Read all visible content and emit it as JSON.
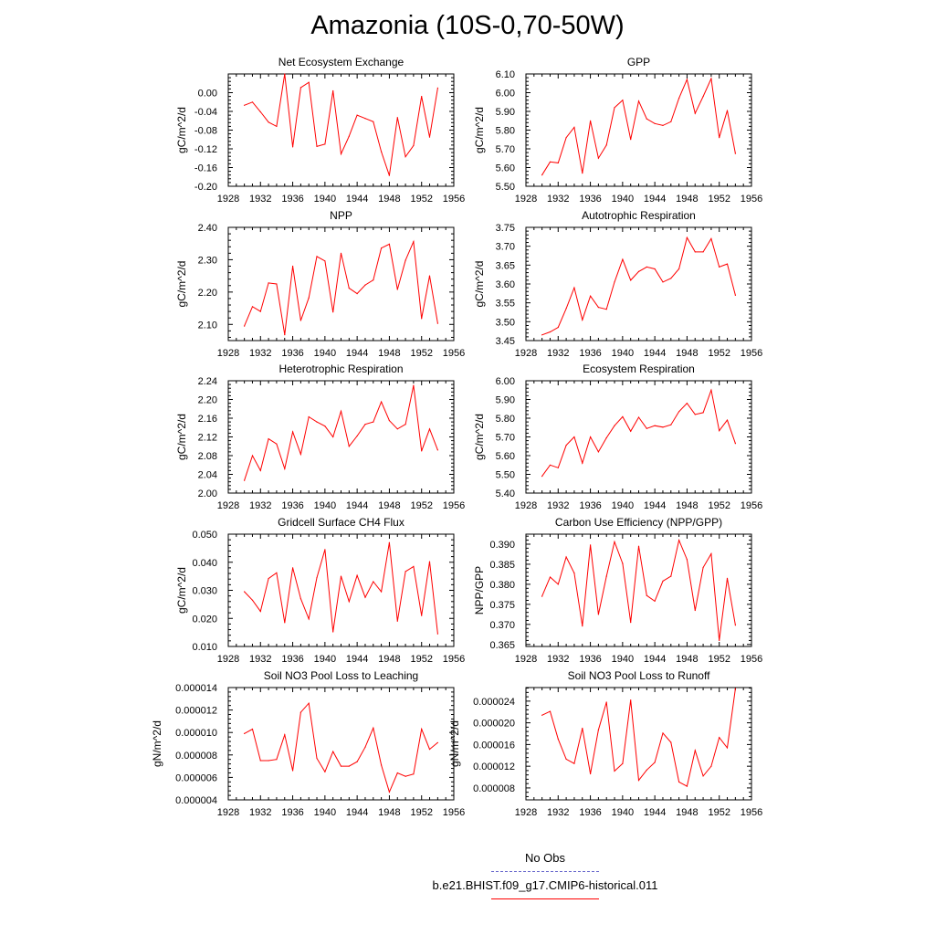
{
  "title": "Amazonia (10S-0,70-50W)",
  "colors": {
    "series": "#ff0000",
    "obs": "#6666cc",
    "axis": "#000000"
  },
  "legend": {
    "obs_label": "No Obs",
    "model_label": "b.e21.BHIST.f09_g17.CMIP6-historical.011"
  },
  "chart_data": [
    {
      "type": "line",
      "title": "Net Ecosystem Exchange",
      "ylabel": "gC/m^2/d",
      "xlim": [
        1928,
        1956
      ],
      "xticks": [
        1928,
        1932,
        1936,
        1940,
        1944,
        1948,
        1952,
        1956
      ],
      "ylim": [
        -0.2,
        0.04
      ],
      "yticks": [
        "-0.20",
        "-0.16",
        "-0.12",
        "-0.08",
        "-0.04",
        "0.00"
      ],
      "x": [
        1930,
        1931,
        1932,
        1933,
        1934,
        1935,
        1936,
        1937,
        1938,
        1939,
        1940,
        1941,
        1942,
        1943,
        1944,
        1945,
        1946,
        1947,
        1948,
        1949,
        1950,
        1951,
        1952,
        1953,
        1954
      ],
      "y": [
        -0.027,
        -0.02,
        -0.041,
        -0.063,
        -0.072,
        0.04,
        -0.116,
        0.011,
        0.022,
        -0.115,
        -0.11,
        0.004,
        -0.131,
        -0.093,
        -0.048,
        -0.055,
        -0.062,
        -0.126,
        -0.177,
        -0.053,
        -0.137,
        -0.113,
        -0.008,
        -0.095,
        0.01
      ]
    },
    {
      "type": "line",
      "title": "GPP",
      "ylabel": "gC/m^2/d",
      "xlim": [
        1928,
        1956
      ],
      "xticks": [
        1928,
        1932,
        1936,
        1940,
        1944,
        1948,
        1952,
        1956
      ],
      "ylim": [
        5.5,
        6.1
      ],
      "yticks": [
        "5.50",
        "5.60",
        "5.70",
        "5.80",
        "5.90",
        "6.00",
        "6.10"
      ],
      "x": [
        1930,
        1931,
        1932,
        1933,
        1934,
        1935,
        1936,
        1937,
        1938,
        1939,
        1940,
        1941,
        1942,
        1943,
        1944,
        1945,
        1946,
        1947,
        1948,
        1949,
        1950,
        1951,
        1952,
        1953,
        1954
      ],
      "y": [
        5.56,
        5.63,
        5.625,
        5.76,
        5.815,
        5.57,
        5.85,
        5.65,
        5.72,
        5.92,
        5.96,
        5.75,
        5.955,
        5.86,
        5.835,
        5.825,
        5.845,
        5.97,
        6.07,
        5.89,
        5.98,
        6.075,
        5.76,
        5.905,
        5.675
      ]
    },
    {
      "type": "line",
      "title": "NPP",
      "ylabel": "gC/m^2/d",
      "xlim": [
        1928,
        1956
      ],
      "xticks": [
        1928,
        1932,
        1936,
        1940,
        1944,
        1948,
        1952,
        1956
      ],
      "ylim": [
        2.05,
        2.4
      ],
      "yticks": [
        "2.10",
        "2.20",
        "2.30",
        "2.40"
      ],
      "x": [
        1930,
        1931,
        1932,
        1933,
        1934,
        1935,
        1936,
        1937,
        1938,
        1939,
        1940,
        1941,
        1942,
        1943,
        1944,
        1945,
        1946,
        1947,
        1948,
        1949,
        1950,
        1951,
        1952,
        1953,
        1954
      ],
      "y": [
        2.095,
        2.155,
        2.14,
        2.228,
        2.225,
        2.068,
        2.28,
        2.112,
        2.182,
        2.31,
        2.296,
        2.138,
        2.32,
        2.212,
        2.195,
        2.222,
        2.237,
        2.336,
        2.348,
        2.208,
        2.298,
        2.356,
        2.118,
        2.25,
        2.103
      ]
    },
    {
      "type": "line",
      "title": "Autotrophic Respiration",
      "ylabel": "gC/m^2/d",
      "xlim": [
        1928,
        1956
      ],
      "xticks": [
        1928,
        1932,
        1936,
        1940,
        1944,
        1948,
        1952,
        1956
      ],
      "ylim": [
        3.45,
        3.75
      ],
      "yticks": [
        "3.45",
        "3.50",
        "3.55",
        "3.60",
        "3.65",
        "3.70",
        "3.75"
      ],
      "x": [
        1930,
        1931,
        1932,
        1933,
        1934,
        1935,
        1936,
        1937,
        1938,
        1939,
        1940,
        1941,
        1942,
        1943,
        1944,
        1945,
        1946,
        1947,
        1948,
        1949,
        1950,
        1951,
        1952,
        1953,
        1954
      ],
      "y": [
        3.465,
        3.473,
        3.485,
        3.535,
        3.59,
        3.505,
        3.568,
        3.538,
        3.533,
        3.605,
        3.665,
        3.61,
        3.633,
        3.645,
        3.64,
        3.605,
        3.615,
        3.64,
        3.723,
        3.685,
        3.685,
        3.72,
        3.645,
        3.653,
        3.57
      ]
    },
    {
      "type": "line",
      "title": "Heterotrophic Respiration",
      "ylabel": "gC/m^2/d",
      "xlim": [
        1928,
        1956
      ],
      "xticks": [
        1928,
        1932,
        1936,
        1940,
        1944,
        1948,
        1952,
        1956
      ],
      "ylim": [
        2.0,
        2.24
      ],
      "yticks": [
        "2.00",
        "2.04",
        "2.08",
        "2.12",
        "2.16",
        "2.20",
        "2.24"
      ],
      "x": [
        1930,
        1931,
        1932,
        1933,
        1934,
        1935,
        1936,
        1937,
        1938,
        1939,
        1940,
        1941,
        1942,
        1943,
        1944,
        1945,
        1946,
        1947,
        1948,
        1949,
        1950,
        1951,
        1952,
        1953,
        1954
      ],
      "y": [
        2.027,
        2.08,
        2.048,
        2.116,
        2.105,
        2.052,
        2.131,
        2.083,
        2.163,
        2.152,
        2.143,
        2.12,
        2.175,
        2.1,
        2.122,
        2.147,
        2.152,
        2.195,
        2.155,
        2.137,
        2.147,
        2.23,
        2.09,
        2.137,
        2.092
      ]
    },
    {
      "type": "line",
      "title": "Ecosystem Respiration",
      "ylabel": "gC/m^2/d",
      "xlim": [
        1928,
        1956
      ],
      "xticks": [
        1928,
        1932,
        1936,
        1940,
        1944,
        1948,
        1952,
        1956
      ],
      "ylim": [
        5.4,
        6.0
      ],
      "yticks": [
        "5.40",
        "5.50",
        "5.60",
        "5.70",
        "5.80",
        "5.90",
        "6.00"
      ],
      "x": [
        1930,
        1931,
        1932,
        1933,
        1934,
        1935,
        1936,
        1937,
        1938,
        1939,
        1940,
        1941,
        1942,
        1943,
        1944,
        1945,
        1946,
        1947,
        1948,
        1949,
        1950,
        1951,
        1952,
        1953,
        1954
      ],
      "y": [
        5.49,
        5.55,
        5.535,
        5.655,
        5.7,
        5.56,
        5.7,
        5.62,
        5.695,
        5.76,
        5.808,
        5.73,
        5.805,
        5.745,
        5.76,
        5.752,
        5.765,
        5.835,
        5.88,
        5.82,
        5.83,
        5.95,
        5.733,
        5.79,
        5.665
      ]
    },
    {
      "type": "line",
      "title": "Gridcell Surface CH4 Flux",
      "ylabel": "gC/m^2/d",
      "xlim": [
        1928,
        1956
      ],
      "xticks": [
        1928,
        1932,
        1936,
        1940,
        1944,
        1948,
        1952,
        1956
      ],
      "ylim": [
        0.01,
        0.05
      ],
      "yticks": [
        "0.010",
        "0.020",
        "0.030",
        "0.040",
        "0.050"
      ],
      "x": [
        1930,
        1931,
        1932,
        1933,
        1934,
        1935,
        1936,
        1937,
        1938,
        1939,
        1940,
        1941,
        1942,
        1943,
        1944,
        1945,
        1946,
        1947,
        1948,
        1949,
        1950,
        1951,
        1952,
        1953,
        1954
      ],
      "y": [
        0.0295,
        0.0265,
        0.0225,
        0.0342,
        0.0362,
        0.0185,
        0.038,
        0.027,
        0.0198,
        0.0345,
        0.0445,
        0.0152,
        0.035,
        0.026,
        0.0353,
        0.0275,
        0.0331,
        0.0295,
        0.047,
        0.019,
        0.0367,
        0.0385,
        0.021,
        0.0402,
        0.0145
      ]
    },
    {
      "type": "line",
      "title": "Carbon Use Efficiency (NPP/GPP)",
      "ylabel": "NPP/GPP",
      "xlim": [
        1928,
        1956
      ],
      "xticks": [
        1928,
        1932,
        1936,
        1940,
        1944,
        1948,
        1952,
        1956
      ],
      "ylim": [
        0.3645,
        0.3925
      ],
      "yticks": [
        "0.365",
        "0.370",
        "0.375",
        "0.380",
        "0.385",
        "0.390"
      ],
      "x": [
        1930,
        1931,
        1932,
        1933,
        1934,
        1935,
        1936,
        1937,
        1938,
        1939,
        1940,
        1941,
        1942,
        1943,
        1944,
        1945,
        1946,
        1947,
        1948,
        1949,
        1950,
        1951,
        1952,
        1953,
        1954
      ],
      "y": [
        0.377,
        0.3818,
        0.38,
        0.3868,
        0.3828,
        0.3696,
        0.3898,
        0.3725,
        0.382,
        0.3906,
        0.3852,
        0.3705,
        0.3895,
        0.3772,
        0.3758,
        0.3808,
        0.382,
        0.391,
        0.3862,
        0.3735,
        0.3842,
        0.3876,
        0.366,
        0.3815,
        0.3698
      ]
    },
    {
      "type": "line",
      "title": "Soil NO3 Pool Loss to Leaching",
      "ylabel": "gN/m^2/d",
      "xlim": [
        1928,
        1956
      ],
      "xticks": [
        1928,
        1932,
        1936,
        1940,
        1944,
        1948,
        1952,
        1956
      ],
      "ylim": [
        4e-06,
        1.4e-05
      ],
      "yticks": [
        "0.000004",
        "0.000006",
        "0.000008",
        "0.000010",
        "0.000012",
        "0.000014"
      ],
      "x": [
        1930,
        1931,
        1932,
        1933,
        1934,
        1935,
        1936,
        1937,
        1938,
        1939,
        1940,
        1941,
        1942,
        1943,
        1944,
        1945,
        1946,
        1947,
        1948,
        1949,
        1950,
        1951,
        1952,
        1953,
        1954
      ],
      "y": [
        9.9e-06,
        1.03e-05,
        7.5e-06,
        7.5e-06,
        7.6e-06,
        9.8e-06,
        6.6e-06,
        1.18e-05,
        1.26e-05,
        7.7e-06,
        6.5e-06,
        8.3e-06,
        7e-06,
        7e-06,
        7.4e-06,
        8.7e-06,
        1.04e-05,
        7.1e-06,
        4.7e-06,
        6.4e-06,
        6.1e-06,
        6.3e-06,
        1.03e-05,
        8.5e-06,
        9.1e-06
      ]
    },
    {
      "type": "line",
      "title": "Soil NO3 Pool Loss to Runoff",
      "ylabel": "gN/m^2/d",
      "xlim": [
        1928,
        1956
      ],
      "xticks": [
        1928,
        1932,
        1936,
        1940,
        1944,
        1948,
        1952,
        1956
      ],
      "ylim": [
        5.8e-06,
        2.65e-05
      ],
      "yticks": [
        "0.000008",
        "0.000012",
        "0.000016",
        "0.000020",
        "0.000024"
      ],
      "x": [
        1930,
        1931,
        1932,
        1933,
        1934,
        1935,
        1936,
        1937,
        1938,
        1939,
        1940,
        1941,
        1942,
        1943,
        1944,
        1945,
        1946,
        1947,
        1948,
        1949,
        1950,
        1951,
        1952,
        1953,
        1954
      ],
      "y": [
        2.14e-05,
        2.21e-05,
        1.7e-05,
        1.33e-05,
        1.25e-05,
        1.9e-05,
        1.06e-05,
        1.87e-05,
        2.38e-05,
        1.11e-05,
        1.25e-05,
        2.42e-05,
        9.4e-06,
        1.13e-05,
        1.27e-05,
        1.81e-05,
        1.64e-05,
        9.1e-06,
        8.3e-06,
        1.49e-05,
        1.02e-05,
        1.2e-05,
        1.73e-05,
        1.54e-05,
        2.63e-05
      ]
    }
  ]
}
